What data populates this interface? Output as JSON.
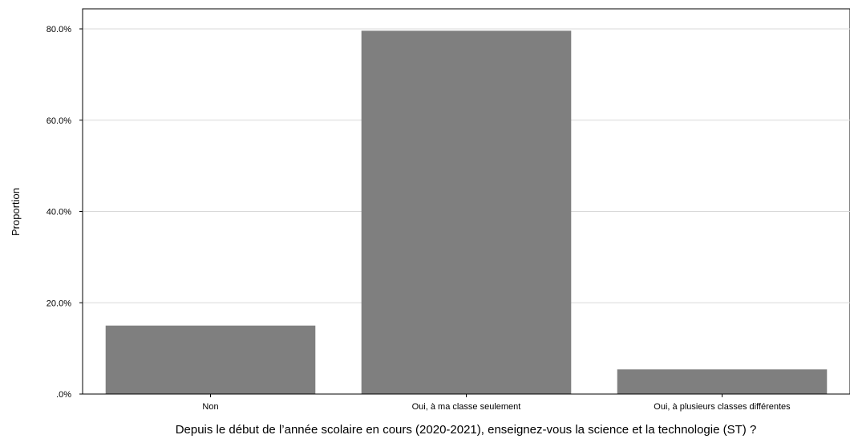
{
  "chart_data": {
    "type": "bar",
    "categories": [
      "Non",
      "Oui, à ma classe seulement",
      "Oui, à plusieurs classes différentes"
    ],
    "values": [
      15.0,
      79.6,
      5.4
    ],
    "xlabel": "Depuis le début de l’année scolaire en cours (2020-2021), enseignez-vous la science et la technologie (ST) ?",
    "ylabel": "Proportion",
    "ylim": [
      0,
      84
    ],
    "yticks": [
      0,
      20,
      40,
      60,
      80
    ],
    "ytick_labels": [
      ".0%",
      "20.0%",
      "40.0%",
      "60.0%",
      "80.0%"
    ],
    "grid": true,
    "bar_color": "#7f7f7f",
    "grid_color": "#d9d9d9",
    "axis_color": "#000000"
  }
}
